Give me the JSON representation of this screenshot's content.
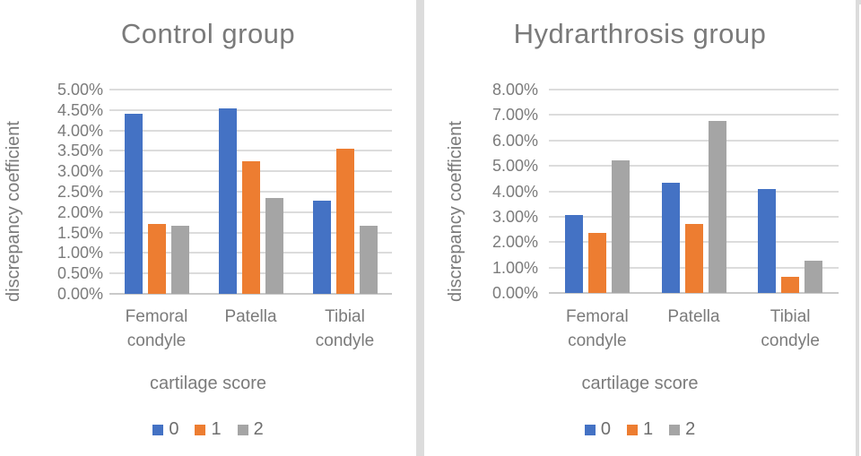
{
  "page": {
    "background": "#ffffff",
    "border_color": "#dcdcdc"
  },
  "chart_data": [
    {
      "type": "bar",
      "title": "Control group",
      "ylabel": "discrepancy coefficient",
      "xlabel": "cartilage score",
      "categories": [
        "Femoral\ncondyle",
        "Patella",
        "Tibial\ncondyle"
      ],
      "series": [
        {
          "name": "0",
          "color": "#4472C4",
          "values": [
            4.4,
            4.55,
            2.28
          ]
        },
        {
          "name": "1",
          "color": "#ED7D31",
          "values": [
            1.7,
            3.25,
            3.55
          ]
        },
        {
          "name": "2",
          "color": "#A5A5A5",
          "values": [
            1.67,
            2.35,
            1.67
          ]
        }
      ],
      "ylim": [
        0,
        5
      ],
      "yticks": [
        "5.00%",
        "4.50%",
        "4.00%",
        "3.50%",
        "3.00%",
        "2.50%",
        "2.00%",
        "1.50%",
        "1.00%",
        "0.50%",
        "0.00%"
      ],
      "grid": true,
      "legend_position": "bottom"
    },
    {
      "type": "bar",
      "title": "Hydrarthrosis group",
      "ylabel": "discrepancy coefficient",
      "xlabel": "cartilage score",
      "categories": [
        "Femoral\ncondyle",
        "Patella",
        "Tibial\ncondyle"
      ],
      "series": [
        {
          "name": "0",
          "color": "#4472C4",
          "values": [
            3.05,
            4.35,
            4.1
          ]
        },
        {
          "name": "1",
          "color": "#ED7D31",
          "values": [
            2.35,
            2.7,
            0.65
          ]
        },
        {
          "name": "2",
          "color": "#A5A5A5",
          "values": [
            5.2,
            6.75,
            1.27
          ]
        }
      ],
      "ylim": [
        0,
        8
      ],
      "yticks": [
        "8.00%",
        "7.00%",
        "6.00%",
        "5.00%",
        "4.00%",
        "3.00%",
        "2.00%",
        "1.00%",
        "0.00%"
      ],
      "grid": true,
      "legend_position": "bottom"
    }
  ]
}
